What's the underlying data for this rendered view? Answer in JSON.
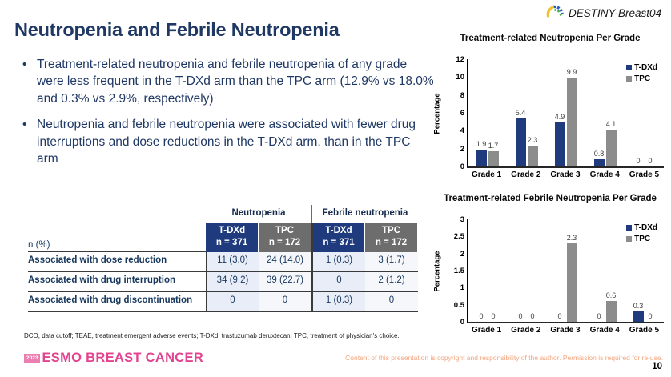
{
  "header": {
    "logo_text": "DESTINY-Breast04"
  },
  "title": "Neutropenia and Febrile Neutropenia",
  "bullets": [
    "Treatment-related neutropenia and febrile neutropenia of any grade were less frequent in the T-DXd arm than the TPC arm (12.9% vs 18.0% and 0.3% vs 2.9%, respectively)",
    "Neutropenia and febrile neutropenia were associated with fewer drug interruptions and dose reductions in the T-DXd arm, than in the TPC arm"
  ],
  "table": {
    "group_headers": [
      "Neutropenia",
      "Febrile neutropenia"
    ],
    "row_label_header": "n (%)",
    "col_headers": [
      {
        "drug": "T-DXd",
        "n": "n = 371"
      },
      {
        "drug": "TPC",
        "n": "n = 172"
      },
      {
        "drug": "T-DXd",
        "n": "n = 371"
      },
      {
        "drug": "TPC",
        "n": "n = 172"
      }
    ],
    "rows": [
      {
        "label": "Associated with dose reduction",
        "cells": [
          "11 (3.0)",
          "24 (14.0)",
          "1 (0.3)",
          "3 (1.7)"
        ]
      },
      {
        "label": "Associated with drug interruption",
        "cells": [
          "34 (9.2)",
          "39 (22.7)",
          "0",
          "2 (1.2)"
        ]
      },
      {
        "label": "Associated with drug discontinuation",
        "cells": [
          "0",
          "0",
          "1 (0.3)",
          "0"
        ]
      }
    ]
  },
  "chart_data": [
    {
      "type": "bar",
      "title": "Treatment-related Neutropenia Per Grade",
      "xlabel": "",
      "ylabel": "Percentage",
      "categories": [
        "Grade 1",
        "Grade 2",
        "Grade 3",
        "Grade 4",
        "Grade 5"
      ],
      "series": [
        {
          "name": "T-DXd",
          "values": [
            1.9,
            5.4,
            4.9,
            0.8,
            0
          ]
        },
        {
          "name": "TPC",
          "values": [
            1.7,
            2.3,
            9.9,
            4.1,
            0
          ]
        }
      ],
      "ylim": [
        0,
        12
      ],
      "ytick_step": 2,
      "grid": false,
      "legend_position": "top-right",
      "colors": [
        "#1F3B7D",
        "#8C8C8C"
      ]
    },
    {
      "type": "bar",
      "title": "Treatment-related Febrile Neutropenia Per Grade",
      "xlabel": "",
      "ylabel": "Percentage",
      "categories": [
        "Grade 1",
        "Grade 2",
        "Grade 3",
        "Grade 4",
        "Grade 5"
      ],
      "series": [
        {
          "name": "T-DXd",
          "values": [
            0,
            0,
            0,
            0,
            0.3
          ]
        },
        {
          "name": "TPC",
          "values": [
            0,
            0,
            2.3,
            0.6,
            0
          ]
        }
      ],
      "ylim": [
        0,
        3
      ],
      "ytick_step": 0.5,
      "grid": false,
      "legend_position": "top-right",
      "colors": [
        "#1F3B7D",
        "#8C8C8C"
      ]
    }
  ],
  "footer": {
    "footnote": "DCO, data cutoff; TEAE, treatment emergent adverse events; T-DXd, trastuzumab deruxtecan; TPC, treatment of physician's choice.",
    "esmo_badge": "2023",
    "esmo_logo": "ESMO BREAST CANCER",
    "copyright": "Content of this presentation is copyright and responsibility of the author. Permission is required for re-use.",
    "page_number": "10"
  },
  "colors": {
    "navy": "#1F3B7D",
    "bar_gray": "#8C8C8C",
    "header_gray": "#6D6D6D",
    "title_navy": "#1F3864",
    "esmo_pink": "#E2448F",
    "copyright_orange": "#F2A57E",
    "cell_blue_tint": "#E9EDF8",
    "cell_gray_tint": "#F6F7FB"
  }
}
